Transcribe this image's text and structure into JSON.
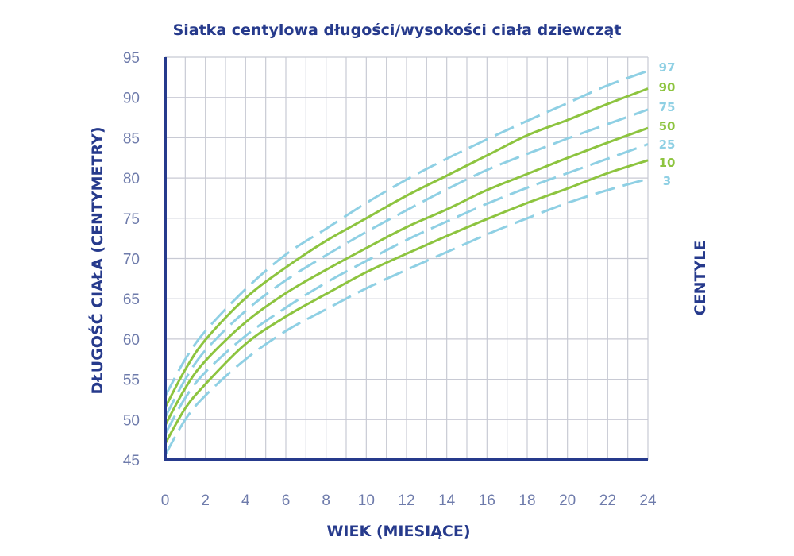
{
  "colors": {
    "title": "#263a8c",
    "axis": "#263a8c",
    "tick": "#6e7bab",
    "grid": "#c8cad4",
    "solid": "#8dc43f",
    "dashed": "#8fd0e4"
  },
  "chart_data": {
    "type": "line",
    "title": "Siatka centylowa długości/wysokości ciała dziewcząt",
    "xlabel": "WIEK (MIESIĄCE)",
    "ylabel": "DŁUGOŚĆ CIAŁA (CENTYMETRY)",
    "legend_title": "CENTYLE",
    "xlim": [
      0,
      24
    ],
    "ylim": [
      45,
      95
    ],
    "grid": true,
    "grid_minor_x": 1,
    "xticks": [
      0,
      2,
      4,
      6,
      8,
      10,
      12,
      14,
      16,
      18,
      20,
      22,
      24
    ],
    "yticks": [
      45,
      50,
      55,
      60,
      65,
      70,
      75,
      80,
      85,
      90,
      95
    ],
    "x": [
      0,
      1,
      2,
      4,
      6,
      8,
      10,
      12,
      14,
      16,
      18,
      20,
      22,
      24
    ],
    "series": [
      {
        "name": "97",
        "style": "dashed",
        "values": [
          52.9,
          57.5,
          61.0,
          66.2,
          70.5,
          73.7,
          76.9,
          79.8,
          82.4,
          84.8,
          87.1,
          89.3,
          91.5,
          93.3
        ]
      },
      {
        "name": "90",
        "style": "solid",
        "values": [
          51.5,
          56.2,
          59.9,
          65.1,
          68.9,
          72.2,
          75.0,
          77.8,
          80.3,
          82.8,
          85.3,
          87.2,
          89.2,
          91.1
        ]
      },
      {
        "name": "75",
        "style": "dashed",
        "values": [
          50.3,
          55.0,
          58.6,
          63.5,
          67.3,
          70.4,
          73.3,
          76.0,
          78.6,
          81.0,
          83.0,
          84.9,
          86.7,
          88.5
        ]
      },
      {
        "name": "50",
        "style": "solid",
        "values": [
          49.3,
          53.9,
          57.3,
          62.1,
          65.7,
          68.6,
          71.3,
          73.9,
          76.1,
          78.5,
          80.5,
          82.5,
          84.4,
          86.2
        ]
      },
      {
        "name": "25",
        "style": "dashed",
        "values": [
          48.2,
          52.7,
          55.9,
          60.4,
          63.9,
          67.0,
          69.7,
          72.3,
          74.6,
          76.8,
          78.8,
          80.6,
          82.4,
          84.2
        ]
      },
      {
        "name": "10",
        "style": "solid",
        "values": [
          47.0,
          51.4,
          54.4,
          59.4,
          62.8,
          65.6,
          68.3,
          70.6,
          72.8,
          74.9,
          76.9,
          78.7,
          80.6,
          82.2
        ]
      },
      {
        "name": "3",
        "style": "dashed",
        "values": [
          45.6,
          50.0,
          53.0,
          57.5,
          61.0,
          63.7,
          66.3,
          68.6,
          70.8,
          73.0,
          75.0,
          76.9,
          78.5,
          79.9
        ]
      }
    ]
  }
}
